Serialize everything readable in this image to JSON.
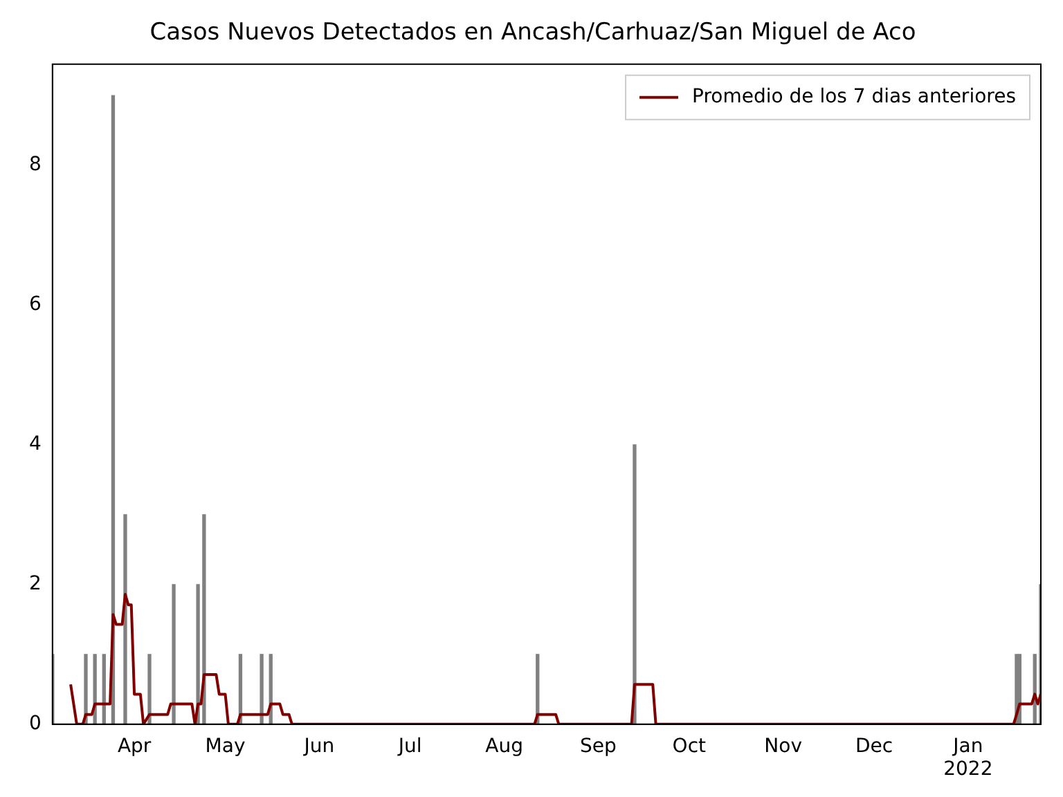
{
  "chart_data": {
    "type": "bar",
    "title": "Casos Nuevos Detectados en Ancash/Carhuaz/San Miguel de Aco",
    "xlim": [
      "2021-03-05",
      "2022-01-25"
    ],
    "xticks": [
      {
        "value": "2021-04-01",
        "label": "Apr"
      },
      {
        "value": "2021-05-01",
        "label": "May"
      },
      {
        "value": "2021-06-01",
        "label": "Jun"
      },
      {
        "value": "2021-07-01",
        "label": "Jul"
      },
      {
        "value": "2021-08-01",
        "label": "Aug"
      },
      {
        "value": "2021-09-01",
        "label": "Sep"
      },
      {
        "value": "2021-10-01",
        "label": "Oct"
      },
      {
        "value": "2021-11-01",
        "label": "Nov"
      },
      {
        "value": "2021-12-01",
        "label": "Dec"
      },
      {
        "value": "2022-01-01",
        "label": "Jan\n2022"
      }
    ],
    "ylim": [
      0,
      9.45
    ],
    "yticks": [
      0,
      2,
      4,
      6,
      8
    ],
    "grid": false,
    "legend": "top right",
    "series": [
      {
        "color": "#808080",
        "x": [
          "2021-03-05",
          "2021-03-16",
          "2021-03-19",
          "2021-03-22",
          "2021-03-25",
          "2021-03-29",
          "2021-04-06",
          "2021-04-14",
          "2021-04-22",
          "2021-04-24",
          "2021-05-06",
          "2021-05-13",
          "2021-05-16",
          "2021-08-12",
          "2021-09-13",
          "2022-01-17",
          "2022-01-18",
          "2022-01-23",
          "2022-01-25"
        ],
        "values": [
          1,
          1,
          1,
          1,
          9,
          3,
          1,
          2,
          2,
          3,
          1,
          1,
          1,
          1,
          4,
          1,
          1,
          1,
          2
        ]
      },
      {
        "type": "line",
        "name": "Promedio de los 7 dias anteriores",
        "color": "#800000",
        "x": [
          "2021-03-11",
          "2021-03-13",
          "2021-03-15",
          "2021-03-16",
          "2021-03-18",
          "2021-03-19",
          "2021-03-24",
          "2021-03-25",
          "2021-03-26",
          "2021-03-28",
          "2021-03-29",
          "2021-03-30",
          "2021-03-31",
          "2021-04-01",
          "2021-04-03",
          "2021-04-04",
          "2021-04-06",
          "2021-04-12",
          "2021-04-13",
          "2021-04-20",
          "2021-04-21",
          "2021-04-22",
          "2021-04-23",
          "2021-04-24",
          "2021-04-28",
          "2021-04-29",
          "2021-05-01",
          "2021-05-02",
          "2021-05-05",
          "2021-05-06",
          "2021-05-15",
          "2021-05-16",
          "2021-05-19",
          "2021-05-20",
          "2021-05-22",
          "2021-05-23",
          "2021-08-11",
          "2021-08-12",
          "2021-08-18",
          "2021-08-19",
          "2021-09-12",
          "2021-09-13",
          "2021-09-19",
          "2021-09-20",
          "2022-01-16",
          "2022-01-17",
          "2022-01-18",
          "2022-01-22",
          "2022-01-23",
          "2022-01-24",
          "2022-01-25"
        ],
        "values": [
          0.57,
          0,
          0,
          0.14,
          0.14,
          0.29,
          0.29,
          1.57,
          1.43,
          1.43,
          1.86,
          1.71,
          1.71,
          0.43,
          0.43,
          0,
          0.14,
          0.14,
          0.29,
          0.29,
          0,
          0.29,
          0.29,
          0.71,
          0.71,
          0.43,
          0.43,
          0,
          0,
          0.14,
          0.14,
          0.29,
          0.29,
          0.14,
          0.14,
          0,
          0,
          0.14,
          0.14,
          0,
          0,
          0.57,
          0.57,
          0,
          0,
          0.14,
          0.29,
          0.29,
          0.43,
          0.29,
          0.43
        ]
      }
    ]
  }
}
